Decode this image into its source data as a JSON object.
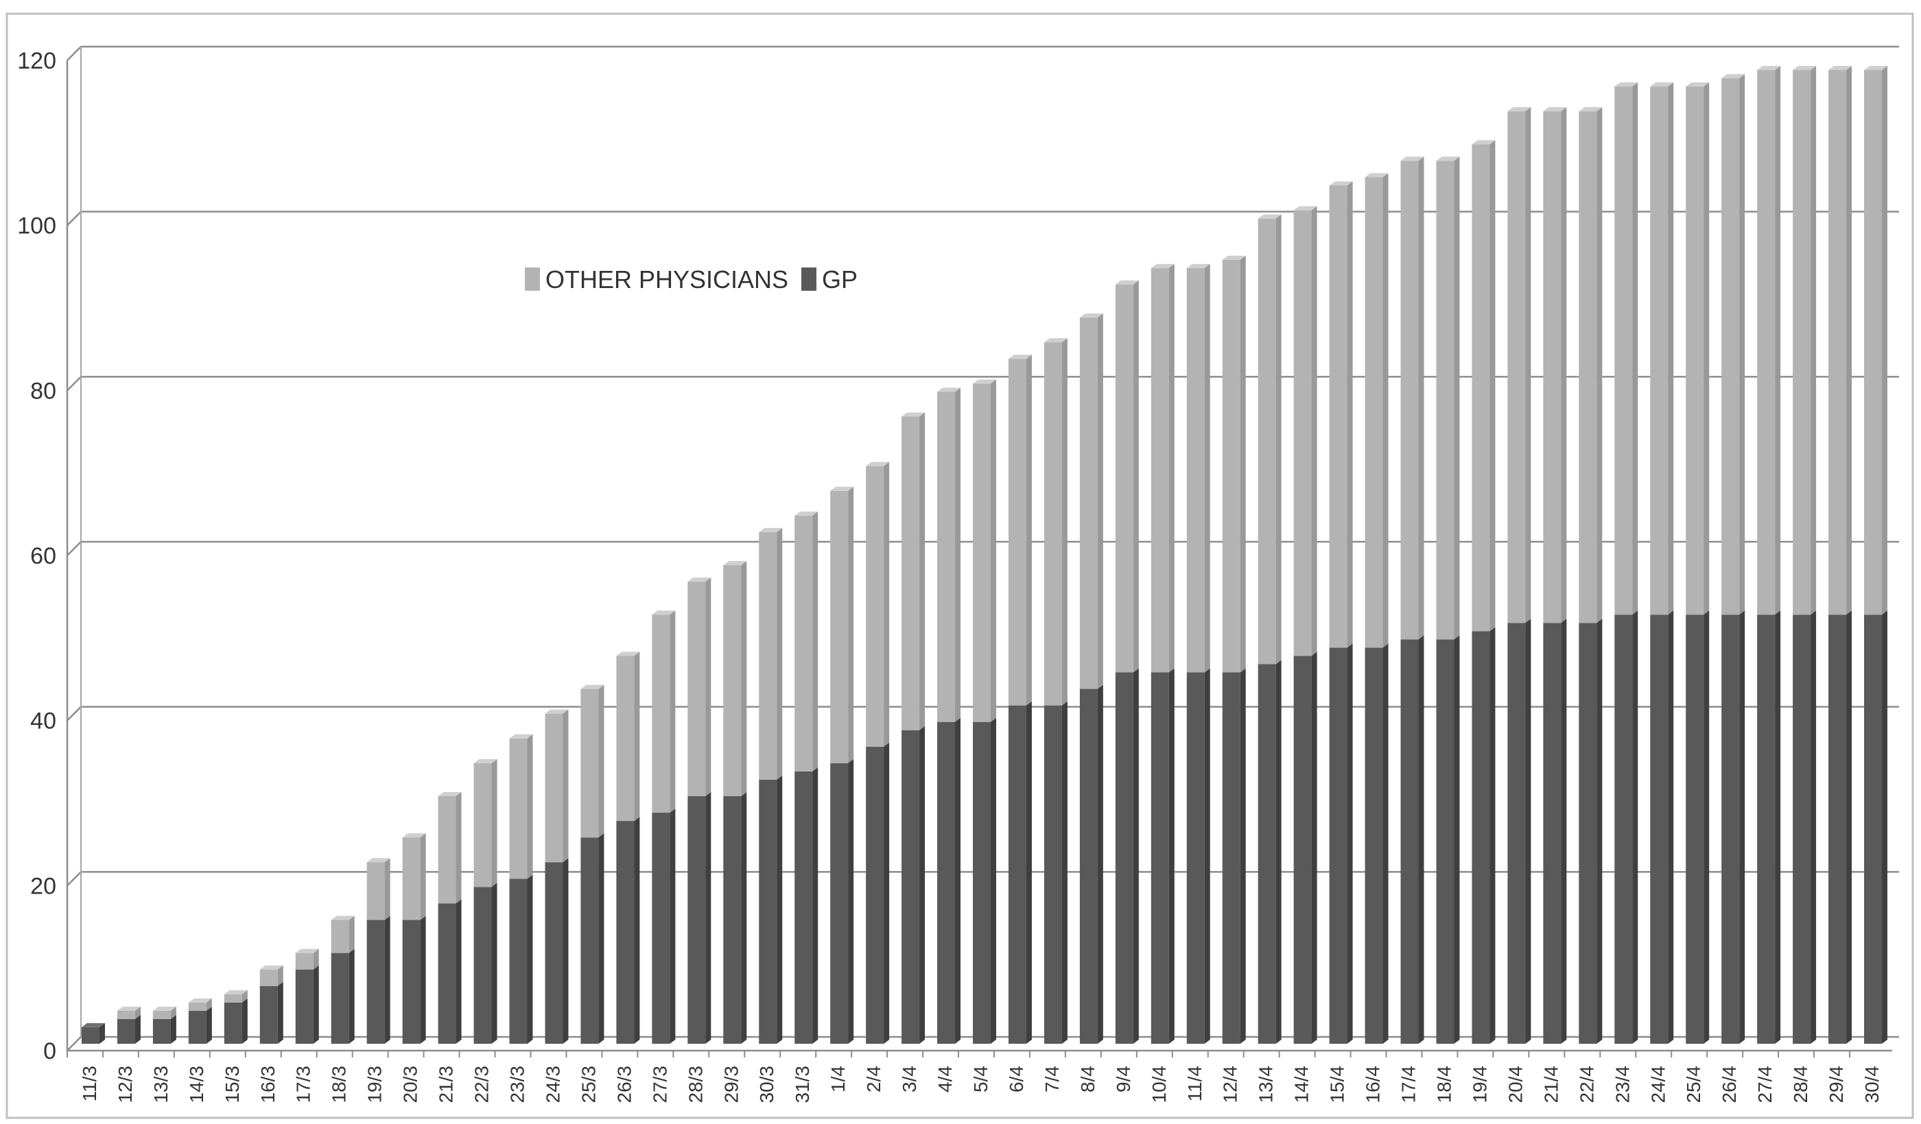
{
  "chart_data": {
    "type": "bar",
    "stacked": true,
    "title": "",
    "xlabel": "",
    "ylabel": "",
    "ylim": [
      0,
      120
    ],
    "yticks": [
      0,
      20,
      40,
      60,
      80,
      100,
      120
    ],
    "grid": true,
    "legend_position": "top-left",
    "categories": [
      "11/3",
      "12/3",
      "13/3",
      "14/3",
      "15/3",
      "16/3",
      "17/3",
      "18/3",
      "19/3",
      "20/3",
      "21/3",
      "22/3",
      "23/3",
      "24/3",
      "25/3",
      "26/3",
      "27/3",
      "28/3",
      "29/3",
      "30/3",
      "31/3",
      "1/4",
      "2/4",
      "3/4",
      "4/4",
      "5/4",
      "6/4",
      "7/4",
      "8/4",
      "9/4",
      "10/4",
      "11/4",
      "12/4",
      "13/4",
      "14/4",
      "15/4",
      "16/4",
      "17/4",
      "18/4",
      "19/4",
      "20/4",
      "21/4",
      "22/4",
      "23/4",
      "24/4",
      "25/4",
      "26/4",
      "27/4",
      "28/4",
      "29/4",
      "30/4"
    ],
    "series": [
      {
        "name": "GP",
        "color": "#595959",
        "values": [
          2,
          3,
          3,
          4,
          5,
          7,
          9,
          11,
          15,
          15,
          17,
          19,
          20,
          22,
          25,
          27,
          28,
          30,
          30,
          32,
          33,
          34,
          36,
          38,
          39,
          39,
          41,
          41,
          43,
          45,
          45,
          45,
          45,
          46,
          47,
          48,
          48,
          49,
          49,
          50,
          51,
          51,
          51,
          52,
          52,
          52,
          52,
          52,
          52,
          52,
          52
        ]
      },
      {
        "name": "OTHER PHYSICIANS",
        "color": "#b3b3b3",
        "values": [
          0,
          1,
          1,
          1,
          1,
          2,
          2,
          4,
          7,
          10,
          13,
          15,
          17,
          18,
          18,
          20,
          24,
          26,
          28,
          30,
          31,
          33,
          34,
          38,
          40,
          41,
          42,
          44,
          45,
          47,
          49,
          49,
          50,
          54,
          54,
          56,
          57,
          58,
          58,
          59,
          62,
          62,
          62,
          64,
          64,
          64,
          65,
          66,
          66,
          66,
          66
        ]
      }
    ],
    "legend": [
      "OTHER PHYSICIANS",
      "GP"
    ]
  }
}
